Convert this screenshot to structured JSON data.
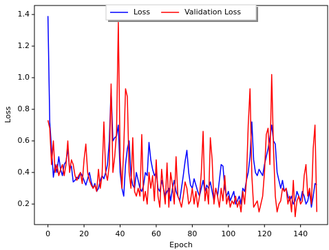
{
  "chart_data": {
    "type": "line",
    "xlabel": "Epoch",
    "ylabel": "Loss",
    "x": [
      0,
      1,
      2,
      3,
      4,
      5,
      6,
      7,
      8,
      9,
      10,
      11,
      12,
      13,
      14,
      15,
      16,
      17,
      18,
      19,
      20,
      21,
      22,
      23,
      24,
      25,
      26,
      27,
      28,
      29,
      30,
      31,
      32,
      33,
      34,
      35,
      36,
      37,
      38,
      39,
      40,
      41,
      42,
      43,
      44,
      45,
      46,
      47,
      48,
      49,
      50,
      51,
      52,
      53,
      54,
      55,
      56,
      57,
      58,
      59,
      60,
      61,
      62,
      63,
      64,
      65,
      66,
      67,
      68,
      69,
      70,
      71,
      72,
      73,
      74,
      75,
      76,
      77,
      78,
      79,
      80,
      81,
      82,
      83,
      84,
      85,
      86,
      87,
      88,
      89,
      90,
      91,
      92,
      93,
      94,
      95,
      96,
      97,
      98,
      99,
      100,
      101,
      102,
      103,
      104,
      105,
      106,
      107,
      108,
      109,
      110,
      111,
      112,
      113,
      114,
      115,
      116,
      117,
      118,
      119,
      120,
      121,
      122,
      123,
      124,
      125,
      126,
      127,
      128,
      129,
      130,
      131,
      132,
      133,
      134,
      135,
      136,
      137,
      138,
      139,
      140,
      141,
      142,
      143,
      144,
      145,
      146,
      147,
      148,
      149
    ],
    "series": [
      {
        "name": "Loss",
        "color": "#0000ff",
        "values": [
          1.39,
          0.72,
          0.55,
          0.37,
          0.45,
          0.4,
          0.5,
          0.42,
          0.38,
          0.45,
          0.47,
          0.55,
          0.42,
          0.44,
          0.34,
          0.35,
          0.37,
          0.36,
          0.4,
          0.38,
          0.35,
          0.32,
          0.36,
          0.4,
          0.34,
          0.3,
          0.33,
          0.28,
          0.3,
          0.35,
          0.38,
          0.36,
          0.4,
          0.45,
          0.6,
          0.93,
          0.6,
          0.62,
          0.63,
          0.7,
          0.4,
          0.3,
          0.25,
          0.45,
          0.55,
          0.6,
          0.38,
          0.32,
          0.3,
          0.4,
          0.35,
          0.3,
          0.28,
          0.32,
          0.4,
          0.38,
          0.59,
          0.48,
          0.42,
          0.38,
          0.4,
          0.3,
          0.28,
          0.35,
          0.3,
          0.25,
          0.28,
          0.3,
          0.22,
          0.3,
          0.35,
          0.28,
          0.25,
          0.22,
          0.3,
          0.38,
          0.47,
          0.54,
          0.4,
          0.32,
          0.3,
          0.36,
          0.32,
          0.28,
          0.25,
          0.3,
          0.35,
          0.28,
          0.32,
          0.3,
          0.34,
          0.28,
          0.22,
          0.3,
          0.25,
          0.35,
          0.45,
          0.44,
          0.3,
          0.25,
          0.28,
          0.22,
          0.25,
          0.28,
          0.2,
          0.22,
          0.25,
          0.2,
          0.3,
          0.28,
          0.35,
          0.4,
          0.5,
          0.72,
          0.48,
          0.4,
          0.38,
          0.42,
          0.4,
          0.38,
          0.45,
          0.5,
          0.55,
          0.62,
          0.7,
          0.6,
          0.58,
          0.4,
          0.35,
          0.3,
          0.35,
          0.28,
          0.3,
          0.25,
          0.22,
          0.25,
          0.2,
          0.22,
          0.28,
          0.25,
          0.22,
          0.28,
          0.25,
          0.2,
          0.22,
          0.28,
          0.18,
          0.25,
          0.33,
          0.32
        ]
      },
      {
        "name": "Validation Loss",
        "color": "#ff0000",
        "values": [
          0.73,
          0.68,
          0.45,
          0.6,
          0.4,
          0.45,
          0.38,
          0.42,
          0.45,
          0.38,
          0.45,
          0.6,
          0.4,
          0.48,
          0.45,
          0.38,
          0.35,
          0.38,
          0.4,
          0.33,
          0.48,
          0.58,
          0.4,
          0.35,
          0.32,
          0.3,
          0.32,
          0.28,
          0.42,
          0.3,
          0.38,
          0.72,
          0.4,
          0.35,
          0.45,
          0.96,
          0.4,
          0.5,
          0.65,
          1.35,
          0.5,
          0.3,
          0.55,
          0.93,
          0.88,
          0.4,
          0.3,
          0.62,
          0.28,
          0.25,
          0.3,
          0.25,
          0.64,
          0.22,
          0.28,
          0.2,
          0.4,
          0.3,
          0.38,
          0.22,
          0.48,
          0.25,
          0.18,
          0.42,
          0.3,
          0.2,
          0.46,
          0.18,
          0.4,
          0.32,
          0.2,
          0.5,
          0.25,
          0.22,
          0.18,
          0.25,
          0.34,
          0.3,
          0.2,
          0.22,
          0.3,
          0.2,
          0.28,
          0.18,
          0.25,
          0.4,
          0.66,
          0.22,
          0.3,
          0.2,
          0.62,
          0.48,
          0.2,
          0.3,
          0.25,
          0.18,
          0.3,
          0.22,
          0.38,
          0.2,
          0.25,
          0.18,
          0.22,
          0.2,
          0.25,
          0.18,
          0.22,
          0.15,
          0.28,
          0.2,
          0.35,
          0.7,
          0.93,
          0.38,
          0.18,
          0.2,
          0.22,
          0.15,
          0.2,
          0.25,
          0.4,
          0.64,
          0.68,
          0.45,
          1.02,
          0.55,
          0.25,
          0.15,
          0.2,
          0.22,
          0.3,
          0.28,
          0.3,
          0.2,
          0.25,
          0.15,
          0.35,
          0.12,
          0.22,
          0.25,
          0.2,
          0.22,
          0.38,
          0.45,
          0.25,
          0.3,
          0.2,
          0.55,
          0.7,
          0.15
        ]
      }
    ],
    "xlim": [
      -7.5,
      155
    ],
    "ylim": [
      0.07,
      1.457
    ],
    "xticks": [
      0,
      20,
      40,
      60,
      80,
      100,
      120,
      140
    ],
    "yticks": [
      0.2,
      0.4,
      0.6,
      0.8,
      {
        "value": 1,
        "label": "1.0"
      },
      1.2,
      1.4
    ],
    "legend": "upper center"
  }
}
